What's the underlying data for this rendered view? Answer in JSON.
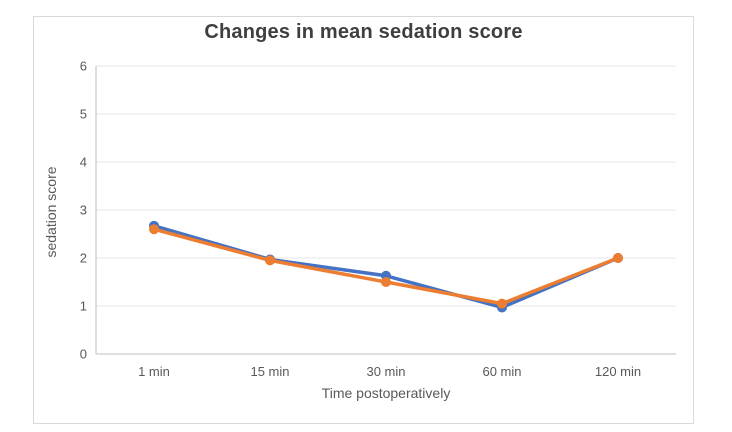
{
  "chart_data": {
    "type": "line",
    "title": "Changes in mean sedation score",
    "xlabel": "Time postoperatively",
    "ylabel": "sedation score",
    "categories": [
      "1 min",
      "15 min",
      "30 min",
      "60 min",
      "120 min"
    ],
    "series": [
      {
        "name": "series-blue",
        "color": "#4472C4",
        "values": [
          2.67,
          1.97,
          1.63,
          0.97,
          2.0
        ]
      },
      {
        "name": "series-orange",
        "color": "#ED7D31",
        "values": [
          2.6,
          1.95,
          1.5,
          1.05,
          2.0
        ]
      }
    ],
    "ylim": [
      0,
      6
    ],
    "ytick_step": 1,
    "grid": true,
    "legend": "none",
    "marker": "circle"
  },
  "colors": {
    "gridline": "#E7E7E7",
    "axis_line": "#BFBFBF",
    "tick_text": "#595959",
    "title_text": "#3F3F3F",
    "panel_border": "#D9D9D9",
    "background": "#FFFFFF"
  }
}
